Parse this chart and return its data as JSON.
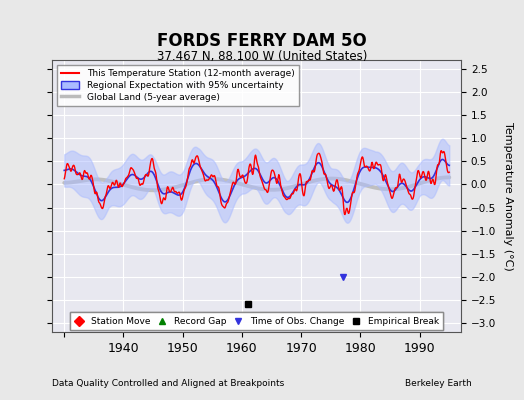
{
  "title": "FORDS FERRY DAM 5O",
  "subtitle": "37.467 N, 88.100 W (United States)",
  "ylabel": "Temperature Anomaly (°C)",
  "footer_left": "Data Quality Controlled and Aligned at Breakpoints",
  "footer_right": "Berkeley Earth",
  "xlim": [
    1928,
    1997
  ],
  "ylim": [
    -3.2,
    2.7
  ],
  "yticks": [
    -3,
    -2.5,
    -2,
    -1.5,
    -1,
    -0.5,
    0,
    0.5,
    1,
    1.5,
    2,
    2.5
  ],
  "xticks": [
    1930,
    1940,
    1950,
    1960,
    1970,
    1980,
    1990
  ],
  "xticklabels": [
    "",
    "1940",
    "1950",
    "1960",
    "1970",
    "1980",
    "1990"
  ],
  "bg_color": "#e8e8e8",
  "plot_bg_color": "#e8e8f0",
  "grid_color": "white",
  "empirical_break_year": 1961,
  "time_obs_change_year": 1977,
  "legend_entries": [
    {
      "label": "This Temperature Station (12-month average)",
      "color": "red",
      "lw": 1.5
    },
    {
      "label": "Regional Expectation with 95% uncertainty",
      "color": "#4444ff",
      "lw": 1.5
    },
    {
      "label": "Global Land (5-year average)",
      "color": "#aaaaaa",
      "lw": 2.5
    }
  ],
  "marker_legend": [
    {
      "label": "Station Move",
      "marker": "D",
      "color": "red"
    },
    {
      "label": "Record Gap",
      "marker": "^",
      "color": "green"
    },
    {
      "label": "Time of Obs. Change",
      "marker": "v",
      "color": "#4444ff"
    },
    {
      "label": "Empirical Break",
      "marker": "s",
      "color": "black"
    }
  ]
}
